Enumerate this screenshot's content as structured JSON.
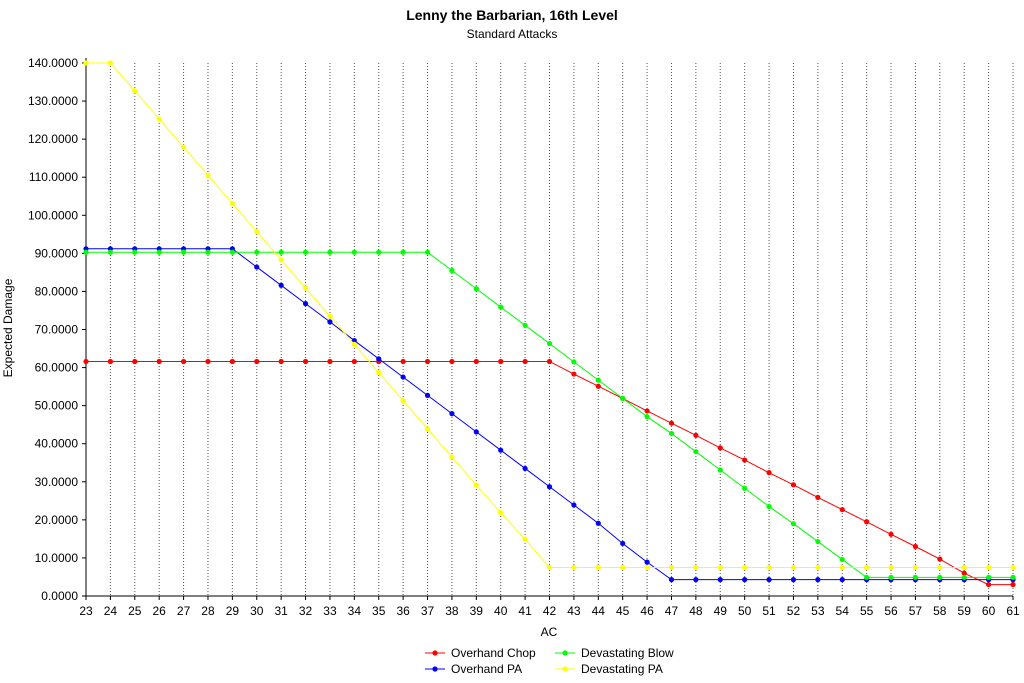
{
  "chart_data": {
    "type": "line",
    "title": "Lenny the Barbarian, 16th Level",
    "subtitle": "Standard Attacks",
    "xlabel": "AC",
    "ylabel": "Expected Damage",
    "ylim": [
      0,
      140
    ],
    "y_ticks": [
      "0.0000",
      "10.0000",
      "20.0000",
      "30.0000",
      "40.0000",
      "50.0000",
      "60.0000",
      "70.0000",
      "80.0000",
      "90.0000",
      "100.0000",
      "110.0000",
      "120.0000",
      "130.0000",
      "140.0000"
    ],
    "x": [
      23,
      24,
      25,
      26,
      27,
      28,
      29,
      30,
      31,
      32,
      33,
      34,
      35,
      36,
      37,
      38,
      39,
      40,
      41,
      42,
      43,
      44,
      45,
      46,
      47,
      48,
      49,
      50,
      51,
      52,
      53,
      54,
      55,
      56,
      57,
      58,
      59,
      60,
      61
    ],
    "grid": "vertical-dotted",
    "legend_position": "bottom",
    "series": [
      {
        "name": "Overhand Chop",
        "color": "#ff0000",
        "values": [
          61.6,
          61.6,
          61.6,
          61.6,
          61.6,
          61.6,
          61.6,
          61.6,
          61.6,
          61.6,
          61.6,
          61.6,
          61.6,
          61.6,
          61.6,
          61.6,
          61.6,
          61.6,
          61.6,
          61.6,
          58.3,
          55.1,
          51.9,
          48.6,
          45.4,
          42.2,
          38.9,
          35.7,
          32.4,
          29.2,
          25.9,
          22.7,
          19.5,
          16.2,
          13.0,
          9.7,
          6.0,
          3.0,
          3.0
        ]
      },
      {
        "name": "Overhand PA",
        "color": "#0000ff",
        "values": [
          91.2,
          91.2,
          91.2,
          91.2,
          91.2,
          91.2,
          91.2,
          86.4,
          81.6,
          76.8,
          72.0,
          67.1,
          62.3,
          57.5,
          52.7,
          47.9,
          43.1,
          38.3,
          33.5,
          28.7,
          23.9,
          19.1,
          13.8,
          8.9,
          4.3,
          4.3,
          4.3,
          4.3,
          4.3,
          4.3,
          4.3,
          4.3,
          4.3,
          4.3,
          4.3,
          4.3,
          4.3,
          4.3,
          4.3
        ]
      },
      {
        "name": "Devastating Blow",
        "color": "#00ff00",
        "values": [
          90.3,
          90.3,
          90.3,
          90.3,
          90.3,
          90.3,
          90.3,
          90.3,
          90.3,
          90.3,
          90.3,
          90.3,
          90.3,
          90.3,
          90.3,
          85.5,
          80.7,
          75.9,
          71.1,
          66.3,
          61.5,
          56.7,
          51.9,
          47.1,
          42.7,
          37.9,
          33.1,
          28.3,
          23.5,
          19.0,
          14.3,
          9.6,
          4.9,
          4.9,
          4.9,
          4.9,
          4.9,
          4.9,
          4.9
        ]
      },
      {
        "name": "Devastating PA",
        "color": "#ffff00",
        "values": [
          140.0,
          140.0,
          132.7,
          125.3,
          117.9,
          110.5,
          103.1,
          95.7,
          88.3,
          80.9,
          73.5,
          66.1,
          58.7,
          51.3,
          43.9,
          36.5,
          29.1,
          21.9,
          14.9,
          7.5,
          7.5,
          7.5,
          7.5,
          7.5,
          7.5,
          7.5,
          7.5,
          7.5,
          7.5,
          7.5,
          7.5,
          7.5,
          7.5,
          7.5,
          7.5,
          7.5,
          7.5,
          7.5,
          7.5
        ]
      }
    ]
  }
}
